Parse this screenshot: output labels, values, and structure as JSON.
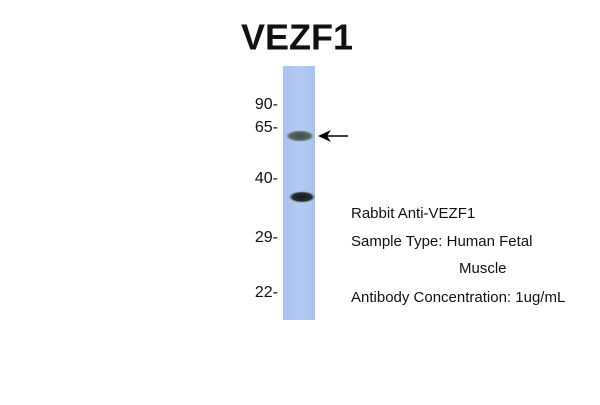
{
  "title": "VEZF1",
  "markers": [
    "90-",
    "65-",
    "40-",
    "29-",
    "22-"
  ],
  "info": [
    "Rabbit Anti-VEZF1",
    "Sample Type: Human Fetal",
    "Muscle",
    "Antibody Concentration: 1ug/mL"
  ]
}
